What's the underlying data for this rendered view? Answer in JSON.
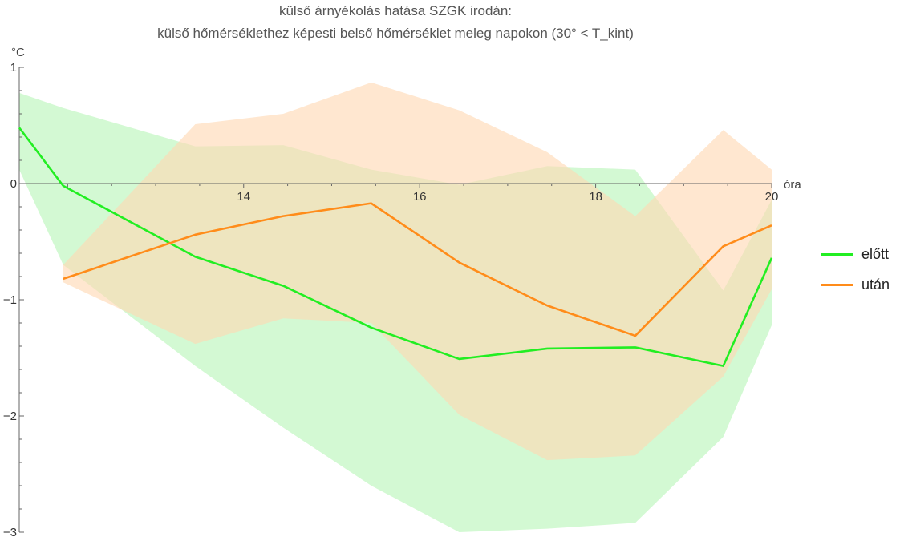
{
  "chart_data": {
    "type": "line",
    "title": "külső árnyékolás hatása SZGK irodán:",
    "subtitle": "külső hőmérséklethez képesti belső hőmérséklet meleg napokon (30° < T_kint)",
    "xlabel": "óra",
    "ylabel": "°C",
    "xlim": [
      11.45,
      20
    ],
    "ylim": [
      -3,
      1
    ],
    "x_ticks": [
      14,
      16,
      18,
      20
    ],
    "x_tick_labels": [
      "14",
      "16",
      "18",
      "20"
    ],
    "y_ticks": [
      1,
      0,
      -1,
      -2,
      -3
    ],
    "y_tick_labels": [
      "1",
      "0",
      "−1",
      "−2",
      "−3"
    ],
    "grid": false,
    "legend_position": "right",
    "series": [
      {
        "name": "előtt",
        "color": "#22ee22",
        "band_color": "#b8f5b8",
        "x": [
          11.45,
          11.95,
          13.45,
          14.45,
          15.45,
          16.45,
          17.45,
          18.45,
          19.45,
          20
        ],
        "values": [
          0.48,
          -0.02,
          -0.63,
          -0.88,
          -1.24,
          -1.51,
          -1.42,
          -1.41,
          -1.57,
          -0.64
        ],
        "band_upper": [
          0.78,
          0.65,
          0.32,
          0.33,
          0.12,
          -0.01,
          0.15,
          0.12,
          -0.92,
          -0.14
        ],
        "band_lower": [
          0.12,
          -0.7,
          -1.57,
          -2.1,
          -2.6,
          -3.0,
          -2.97,
          -2.92,
          -2.18,
          -1.22
        ]
      },
      {
        "name": "után",
        "color": "#ff8c1a",
        "band_color": "#ffd8b3",
        "x": [
          11.95,
          13.45,
          14.45,
          15.45,
          16.45,
          17.45,
          18.45,
          19.45,
          20
        ],
        "values": [
          -0.82,
          -0.44,
          -0.28,
          -0.17,
          -0.68,
          -1.05,
          -1.31,
          -0.54,
          -0.36
        ],
        "band_upper": [
          -0.7,
          0.51,
          0.6,
          0.87,
          0.63,
          0.27,
          -0.28,
          0.46,
          0.12
        ],
        "band_lower": [
          -0.85,
          -1.38,
          -1.16,
          -1.2,
          -1.99,
          -2.38,
          -2.34,
          -1.66,
          -0.91
        ]
      }
    ]
  }
}
